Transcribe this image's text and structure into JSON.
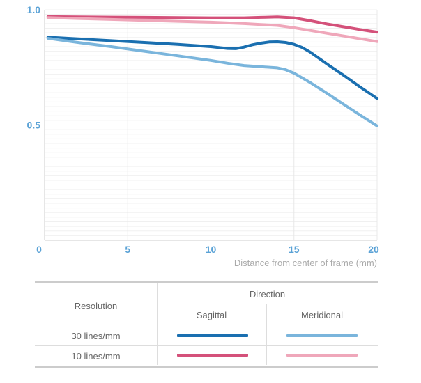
{
  "chart_data": {
    "type": "line",
    "xlabel": "Distance from center of frame (mm)",
    "xlim": [
      0,
      20
    ],
    "ylim": [
      0,
      1.0
    ],
    "x_ticks": [
      "0",
      "5",
      "10",
      "15",
      "20"
    ],
    "y_ticks": [
      "0.5",
      "1.0"
    ],
    "grid": true,
    "series": [
      {
        "key": "s10",
        "color": "#d4517a",
        "x": [
          0.2,
          2,
          4,
          6,
          8,
          10,
          12,
          13,
          14,
          15,
          16,
          17,
          18,
          19,
          20
        ],
        "y": [
          0.97,
          0.969,
          0.968,
          0.967,
          0.966,
          0.965,
          0.965,
          0.967,
          0.969,
          0.965,
          0.952,
          0.938,
          0.926,
          0.914,
          0.903
        ]
      },
      {
        "key": "m10",
        "color": "#efa7ba",
        "x": [
          0.2,
          2,
          4,
          6,
          8,
          10,
          12,
          13,
          14,
          15,
          16,
          17,
          18,
          19,
          20
        ],
        "y": [
          0.966,
          0.962,
          0.958,
          0.954,
          0.95,
          0.946,
          0.94,
          0.936,
          0.932,
          0.922,
          0.91,
          0.898,
          0.886,
          0.874,
          0.862
        ]
      },
      {
        "key": "s30",
        "color": "#1a6fb0",
        "x": [
          0.2,
          2,
          4,
          6,
          8,
          10,
          11,
          11.5,
          12,
          12.5,
          13,
          13.5,
          14,
          14.5,
          15,
          15.5,
          16,
          17,
          18,
          19,
          20
        ],
        "y": [
          0.881,
          0.874,
          0.866,
          0.858,
          0.85,
          0.84,
          0.832,
          0.831,
          0.838,
          0.848,
          0.855,
          0.86,
          0.861,
          0.858,
          0.85,
          0.836,
          0.815,
          0.764,
          0.715,
          0.664,
          0.615
        ]
      },
      {
        "key": "m30",
        "color": "#7ab5dc",
        "x": [
          0.2,
          2,
          4,
          6,
          8,
          10,
          11,
          12,
          13,
          14,
          14.5,
          15,
          16,
          17,
          18,
          19,
          20
        ],
        "y": [
          0.876,
          0.858,
          0.84,
          0.82,
          0.8,
          0.78,
          0.768,
          0.758,
          0.753,
          0.748,
          0.74,
          0.725,
          0.683,
          0.637,
          0.589,
          0.542,
          0.496
        ]
      }
    ]
  },
  "legend": {
    "resolution_header": "Resolution",
    "direction_header": "Direction",
    "sagittal_header": "Sagittal",
    "meridional_header": "Meridional",
    "row_30": "30 lines/mm",
    "row_10": "10 lines/mm"
  },
  "colors": {
    "axis_text": "#5aa2d6",
    "xlabel_text": "#aaaaaa",
    "grid": "#eeeeee"
  }
}
